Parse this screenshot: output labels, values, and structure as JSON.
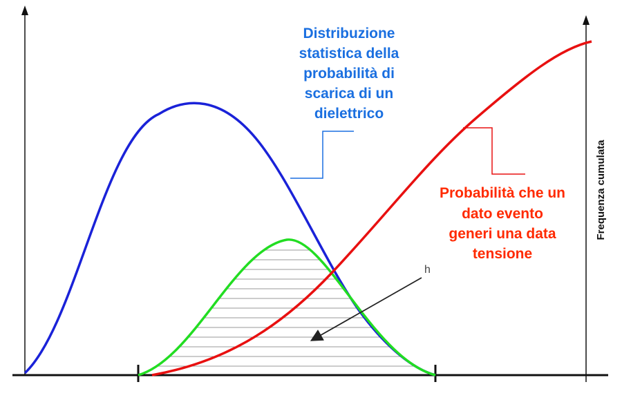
{
  "blue_label": {
    "lines": [
      "Distribuzione",
      "statistica della",
      "probabilità di",
      "scarica di un",
      "dielettrico"
    ]
  },
  "red_label": {
    "lines": [
      "Probabilità che un",
      "dato evento",
      "generi una data",
      "tensione"
    ]
  },
  "right_axis_label": "Frequenza cumulata",
  "arrow_label": "h"
}
